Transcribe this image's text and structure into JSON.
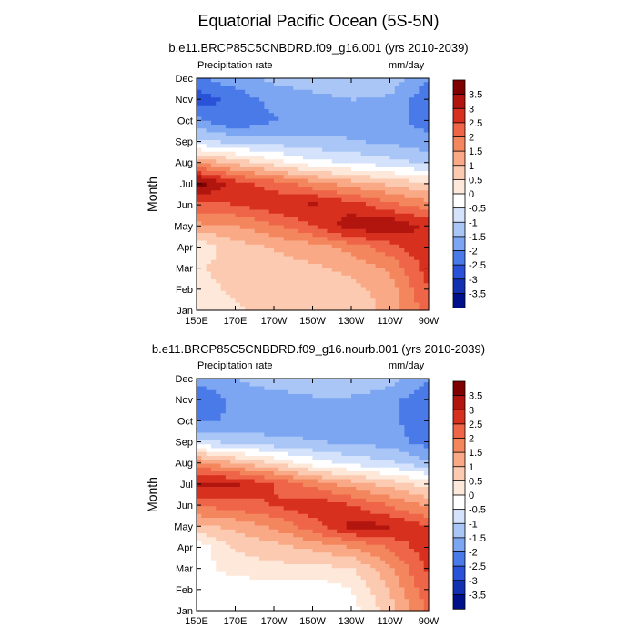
{
  "title": "Equatorial Pacific Ocean (5S-5N)",
  "colorbar": {
    "levels": [
      "3.5",
      "3",
      "2.5",
      "2",
      "1.5",
      "1",
      "0.5",
      "0",
      "-0.5",
      "-1",
      "-1.5",
      "-2",
      "-2.5",
      "-3",
      "-3.5"
    ],
    "colors": [
      "#7f0000",
      "#b2140e",
      "#d7301f",
      "#ef6548",
      "#f4865e",
      "#f9a985",
      "#fccab0",
      "#fde8da",
      "#ffffff",
      "#d4e3fb",
      "#a9c6f7",
      "#7ca6f2",
      "#4a7ae8",
      "#2a52d8",
      "#1330b0",
      "#00108a"
    ]
  },
  "chart_data": [
    {
      "type": "heatmap",
      "title": "b.e11.BRCP85C5CNBDRD.f09_g16.001 (yrs 2010-2039)",
      "left_label": "Precipitation rate",
      "right_label": "mm/day",
      "xlabel": "",
      "ylabel": "Month",
      "x": [
        "150E",
        "170E",
        "170W",
        "150W",
        "130W",
        "110W",
        "90W"
      ],
      "y": [
        "Jan",
        "Feb",
        "Mar",
        "Apr",
        "May",
        "Jun",
        "Jul",
        "Aug",
        "Sep",
        "Oct",
        "Nov",
        "Dec"
      ],
      "values": [
        [
          0.3,
          0.4,
          0.5,
          0.5,
          0.6,
          1.0,
          2.0
        ],
        [
          0.3,
          0.5,
          0.6,
          0.6,
          0.7,
          1.1,
          2.2
        ],
        [
          0.4,
          0.6,
          0.7,
          0.8,
          1.0,
          1.4,
          2.4
        ],
        [
          0.1,
          0.7,
          0.9,
          1.1,
          1.5,
          2.0,
          2.6
        ],
        [
          1.2,
          1.3,
          1.7,
          2.2,
          2.9,
          3.0,
          2.5
        ],
        [
          2.0,
          2.2,
          2.5,
          2.7,
          2.4,
          1.9,
          1.5
        ],
        [
          3.4,
          2.4,
          2.0,
          1.5,
          1.1,
          0.8,
          0.5
        ],
        [
          1.3,
          0.7,
          0.2,
          -0.3,
          -0.5,
          -0.7,
          -1.0
        ],
        [
          -0.8,
          -1.0,
          -1.1,
          -1.2,
          -1.3,
          -1.4,
          -1.6
        ],
        [
          -1.6,
          -2.2,
          -1.8,
          -1.6,
          -1.4,
          -1.5,
          -2.0
        ],
        [
          -2.5,
          -2.0,
          -1.6,
          -1.5,
          -1.3,
          -1.4,
          -2.1
        ],
        [
          -1.8,
          -1.5,
          -1.2,
          -1.0,
          -0.9,
          -1.0,
          -1.7
        ]
      ],
      "zrange": [
        -3.5,
        3.5
      ]
    },
    {
      "type": "heatmap",
      "title": "b.e11.BRCP85C5CNBDRD.f09_g16.nourb.001 (yrs 2010-2039)",
      "left_label": "Precipitation rate",
      "right_label": "mm/day",
      "xlabel": "",
      "ylabel": "Month",
      "x": [
        "150E",
        "170E",
        "170W",
        "150W",
        "130W",
        "110W",
        "90W"
      ],
      "y": [
        "Jan",
        "Feb",
        "Mar",
        "Apr",
        "May",
        "Jun",
        "Jul",
        "Aug",
        "Sep",
        "Oct",
        "Nov",
        "Dec"
      ],
      "values": [
        [
          -0.3,
          -0.3,
          -0.4,
          -0.4,
          -0.2,
          0.7,
          1.8
        ],
        [
          -0.3,
          -0.3,
          -0.3,
          -0.3,
          0.0,
          0.9,
          2.1
        ],
        [
          -0.2,
          0.2,
          0.3,
          0.3,
          0.4,
          1.2,
          2.3
        ],
        [
          -0.3,
          0.5,
          0.7,
          1.0,
          1.3,
          1.8,
          2.5
        ],
        [
          0.8,
          1.0,
          1.4,
          2.0,
          2.8,
          2.7,
          2.2
        ],
        [
          1.8,
          2.0,
          2.2,
          2.5,
          2.2,
          1.7,
          1.2
        ],
        [
          2.8,
          2.7,
          2.2,
          1.6,
          1.1,
          0.7,
          0.2
        ],
        [
          1.5,
          0.9,
          0.4,
          -0.2,
          -0.6,
          -0.8,
          -1.2
        ],
        [
          -0.8,
          -1.0,
          -1.2,
          -1.3,
          -1.4,
          -1.5,
          -2.0
        ],
        [
          -1.8,
          -1.7,
          -1.6,
          -1.5,
          -1.4,
          -1.6,
          -2.2
        ],
        [
          -2.2,
          -1.6,
          -1.5,
          -1.4,
          -1.4,
          -1.6,
          -2.1
        ],
        [
          -1.6,
          -1.3,
          -1.1,
          -0.9,
          -0.9,
          -1.1,
          -1.7
        ]
      ],
      "zrange": [
        -3.5,
        3.5
      ]
    }
  ]
}
